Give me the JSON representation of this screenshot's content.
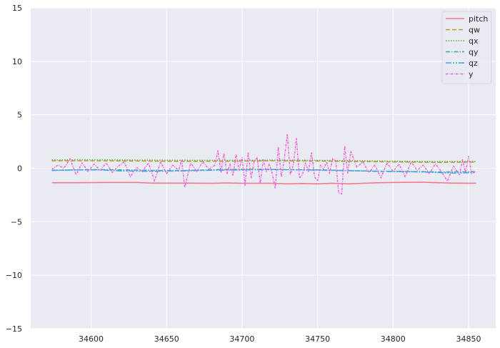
{
  "chart_data": {
    "type": "line",
    "title": "",
    "xlabel": "",
    "ylabel": "",
    "xlim": [
      34560,
      34868
    ],
    "ylim": [
      -15,
      15
    ],
    "xticks": [
      34600,
      34650,
      34700,
      34750,
      34800,
      34850
    ],
    "yticks": [
      -15,
      -10,
      -5,
      0,
      5,
      10,
      15
    ],
    "grid": true,
    "legend_position": "top-right",
    "series": [
      {
        "name": "pitch",
        "color": "#f77189",
        "dash": "",
        "x": [
          34574,
          34590,
          34610,
          34630,
          34640,
          34660,
          34680,
          34690,
          34700,
          34720,
          34730,
          34740,
          34750,
          34760,
          34770,
          34780,
          34790,
          34800,
          34820,
          34830,
          34840,
          34855
        ],
        "y": [
          -1.35,
          -1.35,
          -1.33,
          -1.33,
          -1.38,
          -1.38,
          -1.4,
          -1.37,
          -1.4,
          -1.4,
          -1.45,
          -1.42,
          -1.45,
          -1.4,
          -1.45,
          -1.4,
          -1.35,
          -1.33,
          -1.3,
          -1.35,
          -1.38,
          -1.4
        ]
      },
      {
        "name": "qw",
        "color": "#bb9832",
        "dash": "6,3",
        "x": [
          34574,
          34600,
          34630,
          34660,
          34690,
          34720,
          34750,
          34780,
          34810,
          34830,
          34855
        ],
        "y": [
          0.7,
          0.7,
          0.68,
          0.65,
          0.66,
          0.7,
          0.68,
          0.62,
          0.58,
          0.55,
          0.58
        ]
      },
      {
        "name": "qx",
        "color": "#50b131",
        "dash": "1.5,2",
        "x": [
          34574,
          34600,
          34630,
          34660,
          34690,
          34720,
          34750,
          34780,
          34810,
          34830,
          34855
        ],
        "y": [
          0.78,
          0.8,
          0.77,
          0.75,
          0.74,
          0.76,
          0.74,
          0.7,
          0.65,
          0.62,
          0.64
        ]
      },
      {
        "name": "qy",
        "color": "#36ada4",
        "dash": "6,2,1.5,2",
        "x": [
          34574,
          34600,
          34620,
          34640,
          34660,
          34690,
          34710,
          34730,
          34750,
          34770,
          34790,
          34810,
          34830,
          34855
        ],
        "y": [
          -0.2,
          -0.12,
          -0.15,
          -0.2,
          -0.22,
          -0.1,
          -0.08,
          -0.12,
          -0.15,
          -0.22,
          -0.28,
          -0.3,
          -0.35,
          -0.32
        ]
      },
      {
        "name": "qz",
        "color": "#3ba3ec",
        "dash": "8,2,2,2,2,2",
        "x": [
          34574,
          34590,
          34605,
          34620,
          34640,
          34660,
          34680,
          34700,
          34720,
          34740,
          34760,
          34780,
          34800,
          34820,
          34840,
          34855
        ],
        "y": [
          -0.2,
          -0.15,
          -0.15,
          -0.25,
          -0.28,
          -0.25,
          -0.18,
          -0.15,
          -0.12,
          -0.15,
          -0.2,
          -0.25,
          -0.3,
          -0.35,
          -0.45,
          -0.4
        ]
      },
      {
        "name": "y",
        "color": "#f461dd",
        "dash": "3,1.5,1,1.5",
        "x": [
          34574,
          34578,
          34582,
          34586,
          34590,
          34594,
          34598,
          34602,
          34606,
          34610,
          34614,
          34618,
          34622,
          34626,
          34630,
          34634,
          34638,
          34642,
          34646,
          34650,
          34654,
          34658,
          34660,
          34662,
          34666,
          34670,
          34674,
          34678,
          34682,
          34684,
          34686,
          34688,
          34690,
          34692,
          34694,
          34696,
          34698,
          34700,
          34702,
          34704,
          34706,
          34708,
          34710,
          34712,
          34714,
          34716,
          34718,
          34720,
          34722,
          34724,
          34726,
          34728,
          34730,
          34732,
          34734,
          34736,
          34738,
          34740,
          34742,
          34744,
          34746,
          34748,
          34750,
          34752,
          34754,
          34756,
          34758,
          34760,
          34762,
          34764,
          34766,
          34768,
          34770,
          34772,
          34776,
          34780,
          34784,
          34788,
          34792,
          34796,
          34800,
          34804,
          34808,
          34812,
          34816,
          34820,
          34824,
          34828,
          34832,
          34836,
          34840,
          34844,
          34846,
          34848,
          34850,
          34852,
          34855
        ],
        "y": [
          -0.1,
          0.3,
          0.0,
          0.9,
          -0.6,
          0.5,
          -0.3,
          0.4,
          -0.2,
          0.5,
          -0.4,
          0.2,
          0.6,
          -0.8,
          0.1,
          -0.3,
          0.5,
          -1.2,
          0.6,
          -0.5,
          0.3,
          -0.2,
          0.8,
          -1.8,
          0.5,
          -0.3,
          0.6,
          -0.1,
          0.3,
          1.7,
          -0.4,
          1.4,
          -0.5,
          0.4,
          -0.7,
          1.3,
          -0.2,
          1.0,
          -1.6,
          1.5,
          -0.9,
          0.6,
          1.0,
          -1.4,
          0.8,
          -0.3,
          0.4,
          -0.5,
          -1.9,
          2.0,
          -0.8,
          0.9,
          3.2,
          -0.6,
          0.4,
          2.8,
          -0.9,
          -0.6,
          0.5,
          -0.3,
          1.5,
          -0.8,
          -1.2,
          0.3,
          -0.1,
          0.6,
          -0.5,
          0.9,
          0.7,
          -2.3,
          -2.4,
          2.1,
          -0.5,
          1.6,
          0.1,
          0.6,
          -0.4,
          0.3,
          -0.9,
          0.5,
          -0.3,
          0.4,
          -0.8,
          0.6,
          -0.2,
          0.3,
          -0.5,
          0.4,
          -0.3,
          -1.2,
          0.2,
          -0.6,
          0.8,
          -0.4,
          1.1,
          -0.5,
          -0.3
        ]
      }
    ]
  }
}
